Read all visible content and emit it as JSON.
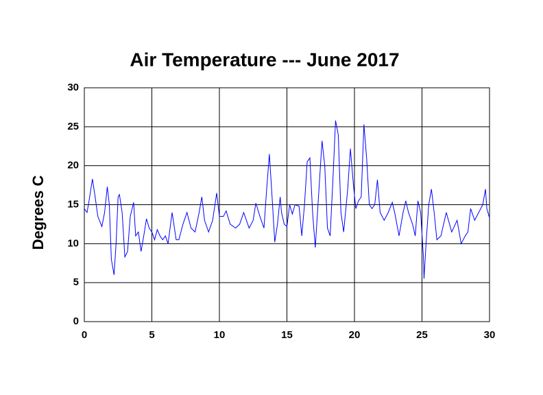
{
  "chart_data": {
    "type": "line",
    "title": "Air Temperature --- June 2017",
    "y_label": "Degrees C",
    "xlim": [
      0,
      30
    ],
    "xticks": [
      0,
      5,
      10,
      15,
      20,
      25,
      30
    ],
    "ylim": [
      0,
      30
    ],
    "yticks": [
      0,
      5,
      10,
      15,
      20,
      25,
      30
    ],
    "grid": true,
    "x": [
      0,
      0.2,
      0.35,
      0.6,
      0.8,
      1.0,
      1.3,
      1.5,
      1.7,
      1.85,
      2.0,
      2.2,
      2.35,
      2.5,
      2.6,
      2.8,
      3.0,
      3.2,
      3.4,
      3.65,
      3.8,
      4.0,
      4.2,
      4.4,
      4.6,
      4.8,
      5.0,
      5.2,
      5.4,
      5.6,
      5.8,
      6.0,
      6.2,
      6.5,
      6.8,
      7.0,
      7.3,
      7.6,
      7.9,
      8.2,
      8.5,
      8.7,
      8.9,
      9.2,
      9.5,
      9.8,
      10.0,
      10.3,
      10.5,
      10.8,
      11.2,
      11.5,
      11.8,
      12.2,
      12.5,
      12.7,
      13.0,
      13.3,
      13.5,
      13.7,
      13.9,
      14.1,
      14.3,
      14.5,
      14.6,
      14.8,
      15.0,
      15.2,
      15.4,
      15.6,
      15.9,
      16.1,
      16.3,
      16.5,
      16.7,
      16.9,
      17.1,
      17.3,
      17.6,
      17.8,
      18.0,
      18.2,
      18.4,
      18.6,
      18.8,
      19.0,
      19.2,
      19.5,
      19.7,
      19.9,
      20.1,
      20.3,
      20.5,
      20.7,
      20.9,
      21.1,
      21.3,
      21.5,
      21.7,
      21.9,
      22.2,
      22.5,
      22.8,
      23.0,
      23.3,
      23.6,
      23.8,
      24.0,
      24.3,
      24.5,
      24.7,
      24.9,
      25.1,
      25.15,
      25.3,
      25.5,
      25.7,
      25.9,
      26.1,
      26.4,
      26.8,
      27.2,
      27.6,
      27.9,
      28.2,
      28.4,
      28.6,
      28.9,
      29.2,
      29.5,
      29.7,
      29.8,
      30.0
    ],
    "series": [
      {
        "color": "#0000ff",
        "values": [
          14.5,
          14,
          15.5,
          18.3,
          16,
          13.5,
          12.2,
          14,
          17.3,
          15,
          8,
          6,
          10,
          16,
          16.3,
          14,
          8.3,
          9,
          13.5,
          15.3,
          11,
          11.5,
          9,
          11,
          13.2,
          12,
          11.5,
          10.5,
          11.8,
          11,
          10.5,
          11,
          10,
          14,
          10.5,
          10.5,
          12.5,
          14,
          12,
          11.5,
          14,
          16,
          13,
          11.5,
          13,
          16.5,
          13.5,
          13.5,
          14.2,
          12.5,
          12,
          12.5,
          14,
          12,
          13,
          15.2,
          13.5,
          12,
          17,
          21.5,
          16,
          10.2,
          12.5,
          16,
          14,
          12.5,
          12.2,
          15,
          13.8,
          15,
          14.8,
          11,
          15,
          20.5,
          21,
          14,
          9.5,
          15,
          23.2,
          20,
          12,
          11,
          18,
          25.8,
          24,
          14,
          11.5,
          17,
          22.2,
          18,
          14.5,
          15.5,
          16,
          25.3,
          21,
          15,
          14.5,
          15,
          18.2,
          14,
          13,
          14,
          15.3,
          13.8,
          11,
          14,
          15.5,
          14,
          12.5,
          11,
          15.5,
          14,
          8.5,
          5.5,
          10,
          15,
          17,
          14,
          10.5,
          11,
          14,
          11.5,
          13,
          10,
          11,
          11.5,
          14.5,
          13,
          14,
          15,
          17,
          14.5,
          13.3
        ]
      }
    ]
  }
}
